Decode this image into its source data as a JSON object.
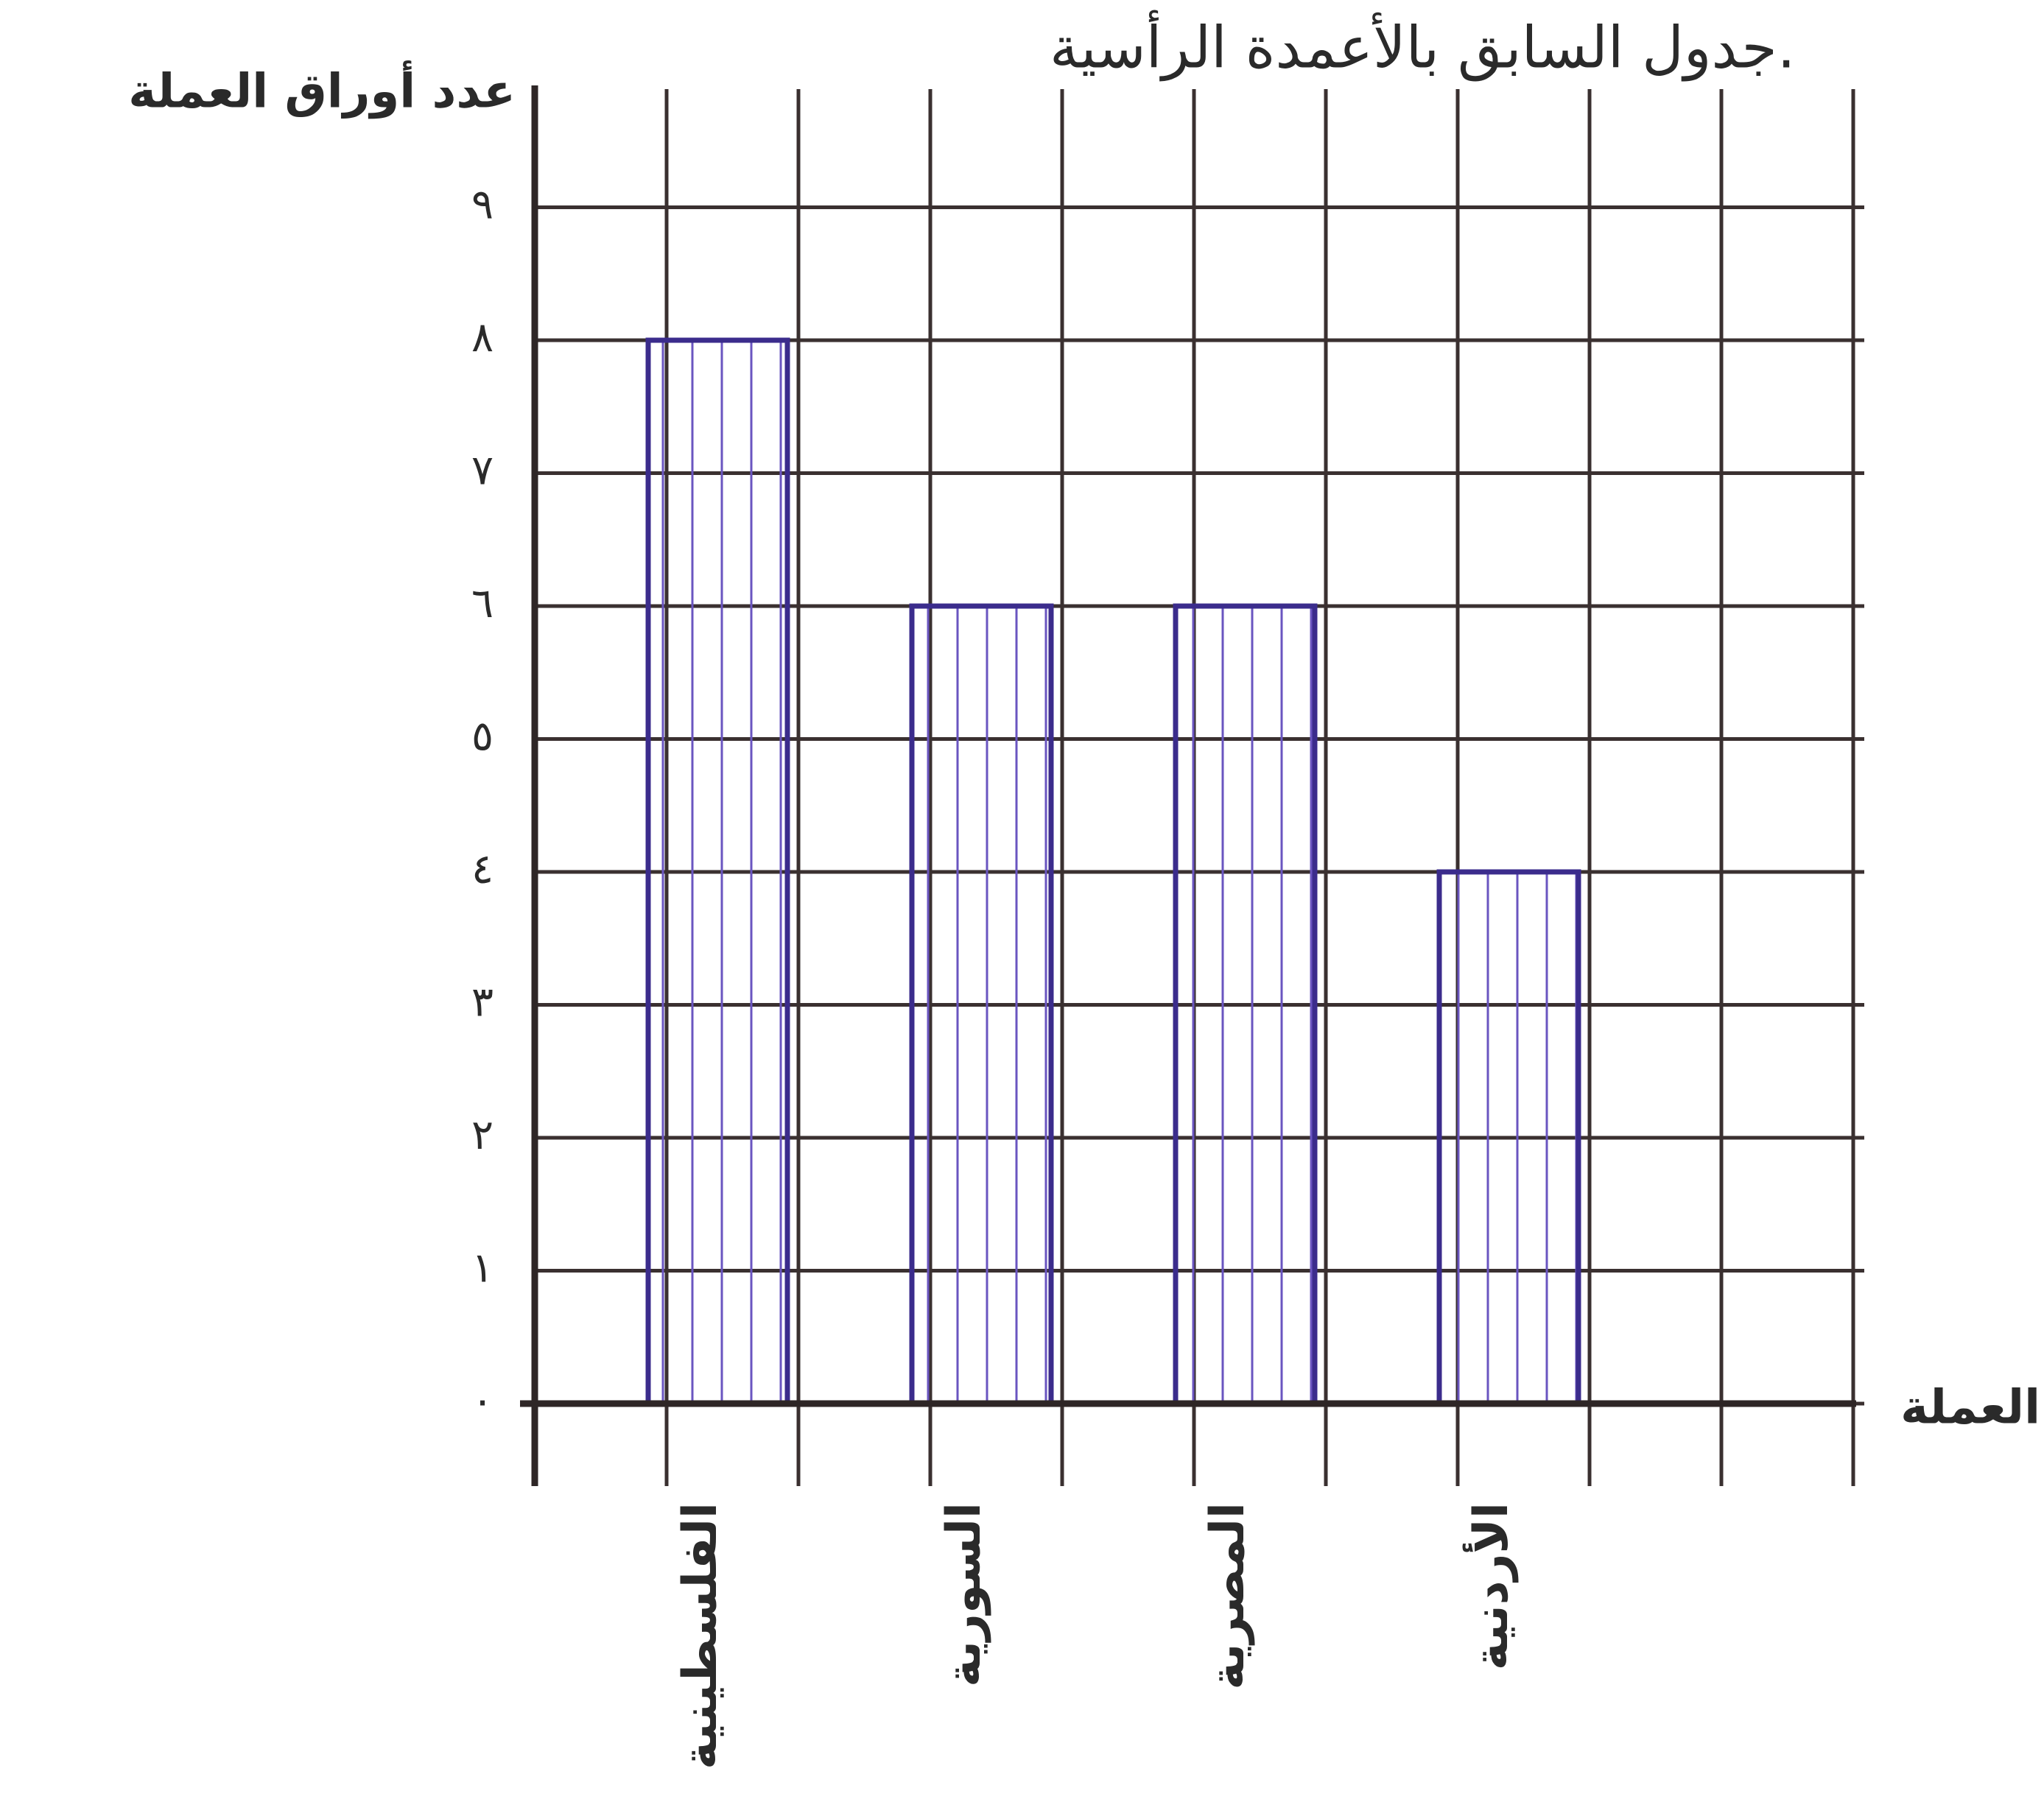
{
  "chart_data": {
    "type": "bar",
    "title": "جدول السابق بالأعمدة الرأسية.",
    "y_label": "عدد أوراق العملة",
    "x_label": "العملة",
    "categories": [
      "الفلسطينية",
      "السورية",
      "المصرية",
      "الأردنية"
    ],
    "values": [
      8,
      6,
      6,
      4
    ],
    "color": "#3b2c8c",
    "ylim": [
      0,
      10
    ],
    "yticks": [
      {
        "value": 0,
        "label": "٠"
      },
      {
        "value": 1,
        "label": "١"
      },
      {
        "value": 2,
        "label": "٢"
      },
      {
        "value": 3,
        "label": "٣"
      },
      {
        "value": 4,
        "label": "٤"
      },
      {
        "value": 5,
        "label": "٥"
      },
      {
        "value": 6,
        "label": "٦"
      },
      {
        "value": 7,
        "label": "٧"
      },
      {
        "value": 8,
        "label": "٨"
      },
      {
        "value": 9,
        "label": "٩"
      }
    ],
    "grid": true
  }
}
